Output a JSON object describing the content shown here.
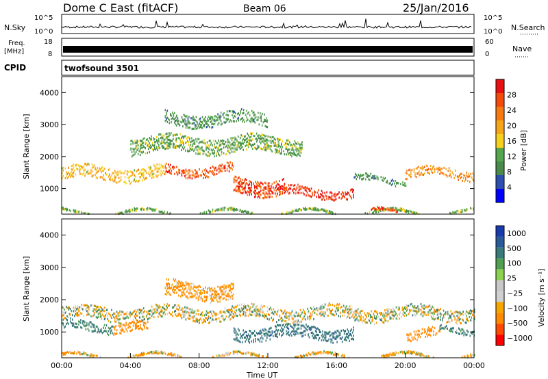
{
  "header": {
    "station": "Dome C East (fitACF)",
    "beam": "Beam 06",
    "date": "25/Jan/2016"
  },
  "status_panels": {
    "nsky_label": "N.Sky",
    "nsky_ticks": [
      "10^5",
      "10^0"
    ],
    "nsearch_label": "N.Search",
    "nsearch_ticks": [
      "10^5",
      "10^0"
    ],
    "freq_label_line1": "Freq.",
    "freq_label_line2": "[MHz]",
    "freq_ticks": [
      "18",
      "8"
    ],
    "nave_label": "Nave",
    "nave_ticks": [
      "60",
      "0"
    ],
    "cpid_label": "CPID",
    "cpid_value": "twofsound 3501"
  },
  "colors": {
    "power_scale": [
      "#0000ff",
      "#2f4fb0",
      "#4a8a4a",
      "#55a64f",
      "#f5d01e",
      "#f7a61a",
      "#f77a10",
      "#f44a0a",
      "#e81010"
    ],
    "velocity_scale": [
      "#ff0000",
      "#ff4a00",
      "#ff8a00",
      "#f7a600",
      "#d0d0d0",
      "#c8c8c8",
      "#8cd050",
      "#50a050",
      "#3a7a7a",
      "#2a5a9a",
      "#1a3ab0"
    ],
    "ground_scatter": "#c0c0c0"
  },
  "chart_data": [
    {
      "type": "heatmap",
      "panel": "power",
      "title": "",
      "xlabel": "",
      "ylabel": "Slant Range [km]",
      "yticks": [
        "1000",
        "2000",
        "3000",
        "4000"
      ],
      "ylim": [
        200,
        4500
      ],
      "xlim": [
        "00:00",
        "24:00"
      ],
      "colorbar_label": "Power [dB]",
      "colorbar_ticks": [
        "4",
        "8",
        "12",
        "16",
        "20",
        "24",
        "28"
      ],
      "colorbar_range": [
        0,
        32
      ],
      "bands": [
        {
          "t_start": 0,
          "t_end": 6,
          "range_center": 1500,
          "range_width": 400,
          "level": 18
        },
        {
          "t_start": 6,
          "t_end": 10,
          "range_center": 1600,
          "range_width": 300,
          "level": 26
        },
        {
          "t_start": 10,
          "t_end": 13,
          "range_center": 1100,
          "range_width": 500,
          "level": 27
        },
        {
          "t_start": 13,
          "t_end": 17,
          "range_center": 900,
          "range_width": 300,
          "level": 29
        },
        {
          "t_start": 17,
          "t_end": 20,
          "range_center": 1300,
          "range_width": 200,
          "level": 10
        },
        {
          "t_start": 20,
          "t_end": 24,
          "range_center": 1500,
          "range_width": 300,
          "level": 22
        },
        {
          "t_start": 4,
          "t_end": 14,
          "range_center": 2400,
          "range_width": 500,
          "level": 12
        },
        {
          "t_start": 6,
          "t_end": 12,
          "range_center": 3200,
          "range_width": 400,
          "level": 10
        },
        {
          "t_start": 0,
          "t_end": 24,
          "range_center": 280,
          "range_width": 80,
          "level": 12
        },
        {
          "t_start": 18,
          "t_end": 19.5,
          "range_center": 300,
          "range_width": 80,
          "level": 28
        }
      ]
    },
    {
      "type": "heatmap",
      "panel": "velocity",
      "title": "",
      "xlabel": "Time UT",
      "ylabel": "Slant Range [km]",
      "yticks": [
        "1000",
        "2000",
        "3000",
        "4000"
      ],
      "ylim": [
        200,
        4500
      ],
      "xticks": [
        "00:00",
        "04:00",
        "08:00",
        "12:00",
        "16:00",
        "20:00",
        "00:00"
      ],
      "xlim": [
        "00:00",
        "24:00"
      ],
      "colorbar_label": "Velocity [m s⁻¹]",
      "colorbar_ticks": [
        "1000",
        "500",
        "100",
        "25",
        "−25",
        "−100",
        "−500",
        "−1000"
      ],
      "bands": [
        {
          "t_start": 0,
          "t_end": 24,
          "range_center": 1600,
          "range_width": 400,
          "velocity": 0
        },
        {
          "t_start": 0,
          "t_end": 3,
          "range_center": 1200,
          "range_width": 300,
          "velocity": 200
        },
        {
          "t_start": 3,
          "t_end": 5,
          "range_center": 1100,
          "range_width": 300,
          "velocity": -300
        },
        {
          "t_start": 10,
          "t_end": 17,
          "range_center": 1000,
          "range_width": 400,
          "velocity": 400
        },
        {
          "t_start": 20,
          "t_end": 22,
          "range_center": 1000,
          "range_width": 300,
          "velocity": -300
        },
        {
          "t_start": 22,
          "t_end": 24,
          "range_center": 1100,
          "range_width": 200,
          "velocity": 150
        },
        {
          "t_start": 6,
          "t_end": 10,
          "range_center": 2300,
          "range_width": 500,
          "velocity": -150
        },
        {
          "t_start": 0,
          "t_end": 24,
          "range_center": 280,
          "range_width": 80,
          "velocity": -80
        }
      ]
    }
  ]
}
